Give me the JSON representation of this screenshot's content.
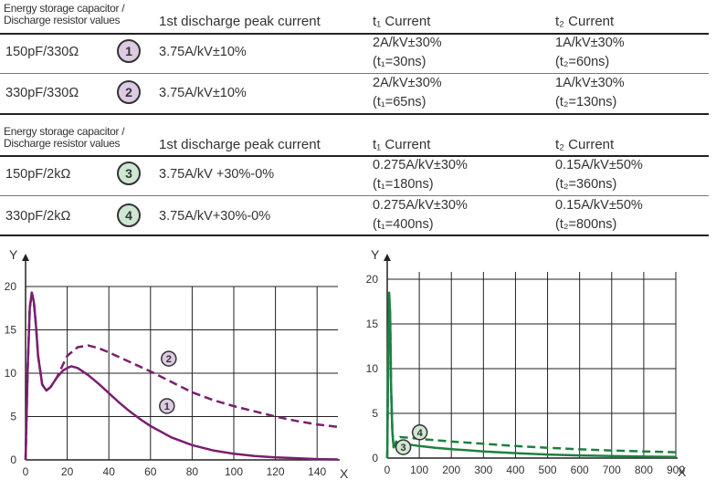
{
  "tables": [
    {
      "header": {
        "col1_line1": "Energy storage capacitor /",
        "col1_line2": "Discharge resistor values",
        "col2": "1st discharge peak current",
        "col3": "t₁ Current",
        "col4": "t₂ Current"
      },
      "rows": [
        {
          "values": "150pF/330Ω",
          "badge": "1",
          "peak": "3.75A/kV±10%",
          "t1_current": "2A/kV±30%",
          "t1_time": "(t₁=30ns)",
          "t2_current": "1A/kV±30%",
          "t2_time": "(t₂=60ns)"
        },
        {
          "values": "330pF/330Ω",
          "badge": "2",
          "peak": "3.75A/kV±10%",
          "t1_current": "2A/kV±30%",
          "t1_time": "(t₁=65ns)",
          "t2_current": "1A/kV±30%",
          "t2_time": "(t₂=130ns)"
        }
      ]
    },
    {
      "header": {
        "col1_line1": "Energy storage capacitor /",
        "col1_line2": "Discharge resistor values",
        "col2": "1st discharge peak current",
        "col3": "t₁ Current",
        "col4": "t₂ Current"
      },
      "rows": [
        {
          "values": "150pF/2kΩ",
          "badge": "3",
          "peak": "3.75A/kV +30%-0%",
          "t1_current": "0.275A/kV±30%",
          "t1_time": "(t₁=180ns)",
          "t2_current": "0.15A/kV±50%",
          "t2_time": "(t₂=360ns)"
        },
        {
          "values": "330pF/2kΩ",
          "badge": "4",
          "peak": "3.75A/kV+30%-0%",
          "t1_current": "0.275A/kV±30%",
          "t1_time": "(t₁=400ns)",
          "t2_current": "0.15A/kV±50%",
          "t2_time": "(t₂=800ns)"
        }
      ]
    }
  ],
  "colors": {
    "purple": "#7a1f6e",
    "green": "#1e8040",
    "purple_badge": "#dccbe3",
    "green_badge": "#cfe7d2"
  },
  "chart_data": [
    {
      "type": "line",
      "xlabel": "X",
      "ylabel": "Y",
      "xlim": [
        0,
        150
      ],
      "ylim": [
        0,
        20
      ],
      "xticks": [
        0,
        20,
        40,
        60,
        80,
        100,
        120,
        140
      ],
      "yticks": [
        0,
        5,
        10,
        15,
        20
      ],
      "grid": true,
      "series": [
        {
          "name": "1",
          "style": "solid",
          "x": [
            0,
            1,
            2,
            3,
            4,
            5,
            6,
            8,
            10,
            12,
            15,
            18,
            20,
            22,
            25,
            30,
            35,
            40,
            45,
            50,
            55,
            60,
            70,
            80,
            90,
            100,
            110,
            120,
            130,
            140,
            150
          ],
          "y": [
            0,
            10.5,
            17.5,
            19.3,
            18.2,
            15.5,
            12.0,
            8.7,
            8.0,
            8.4,
            9.5,
            10.3,
            10.6,
            10.8,
            10.6,
            9.8,
            8.8,
            7.7,
            6.6,
            5.6,
            4.7,
            3.9,
            2.6,
            1.7,
            1.1,
            0.7,
            0.45,
            0.3,
            0.2,
            0.1,
            0.05
          ]
        },
        {
          "name": "2",
          "style": "dashed",
          "x": [
            0,
            1,
            2,
            3,
            4,
            5,
            6,
            8,
            10,
            12,
            15,
            18,
            20,
            25,
            30,
            35,
            40,
            50,
            60,
            70,
            80,
            90,
            100,
            110,
            120,
            130,
            140,
            150
          ],
          "y": [
            0,
            10.5,
            17.5,
            19.3,
            18.2,
            15.5,
            12.0,
            8.7,
            8.0,
            8.4,
            9.5,
            11.0,
            12.0,
            13.0,
            13.2,
            12.9,
            12.4,
            11.3,
            10.2,
            9.0,
            7.8,
            6.9,
            6.2,
            5.6,
            5.0,
            4.5,
            4.1,
            3.8
          ]
        }
      ]
    },
    {
      "type": "line",
      "xlabel": "X",
      "ylabel": "Y",
      "xlim": [
        0,
        900
      ],
      "ylim": [
        0,
        20
      ],
      "xticks": [
        0,
        100,
        200,
        300,
        400,
        500,
        600,
        700,
        800,
        900
      ],
      "yticks": [
        0,
        5,
        10,
        15,
        20
      ],
      "grid": true,
      "series": [
        {
          "name": "3",
          "style": "solid",
          "x": [
            0,
            3,
            6,
            9,
            12,
            16,
            20,
            30,
            40,
            60,
            100,
            150,
            200,
            300,
            400,
            500,
            600,
            700,
            800,
            900
          ],
          "y": [
            0,
            12,
            18.5,
            16,
            8,
            3.0,
            1.2,
            1.6,
            1.7,
            1.55,
            1.35,
            1.15,
            1.0,
            0.75,
            0.55,
            0.4,
            0.3,
            0.22,
            0.16,
            0.12
          ]
        },
        {
          "name": "4",
          "style": "dashed",
          "x": [
            0,
            3,
            6,
            9,
            12,
            16,
            20,
            30,
            40,
            60,
            100,
            150,
            200,
            300,
            400,
            500,
            600,
            700,
            800,
            900
          ],
          "y": [
            0,
            12,
            18.5,
            16,
            8,
            3.0,
            1.2,
            2.0,
            2.35,
            2.3,
            2.15,
            2.0,
            1.85,
            1.6,
            1.35,
            1.15,
            0.98,
            0.85,
            0.74,
            0.65
          ]
        }
      ]
    }
  ]
}
